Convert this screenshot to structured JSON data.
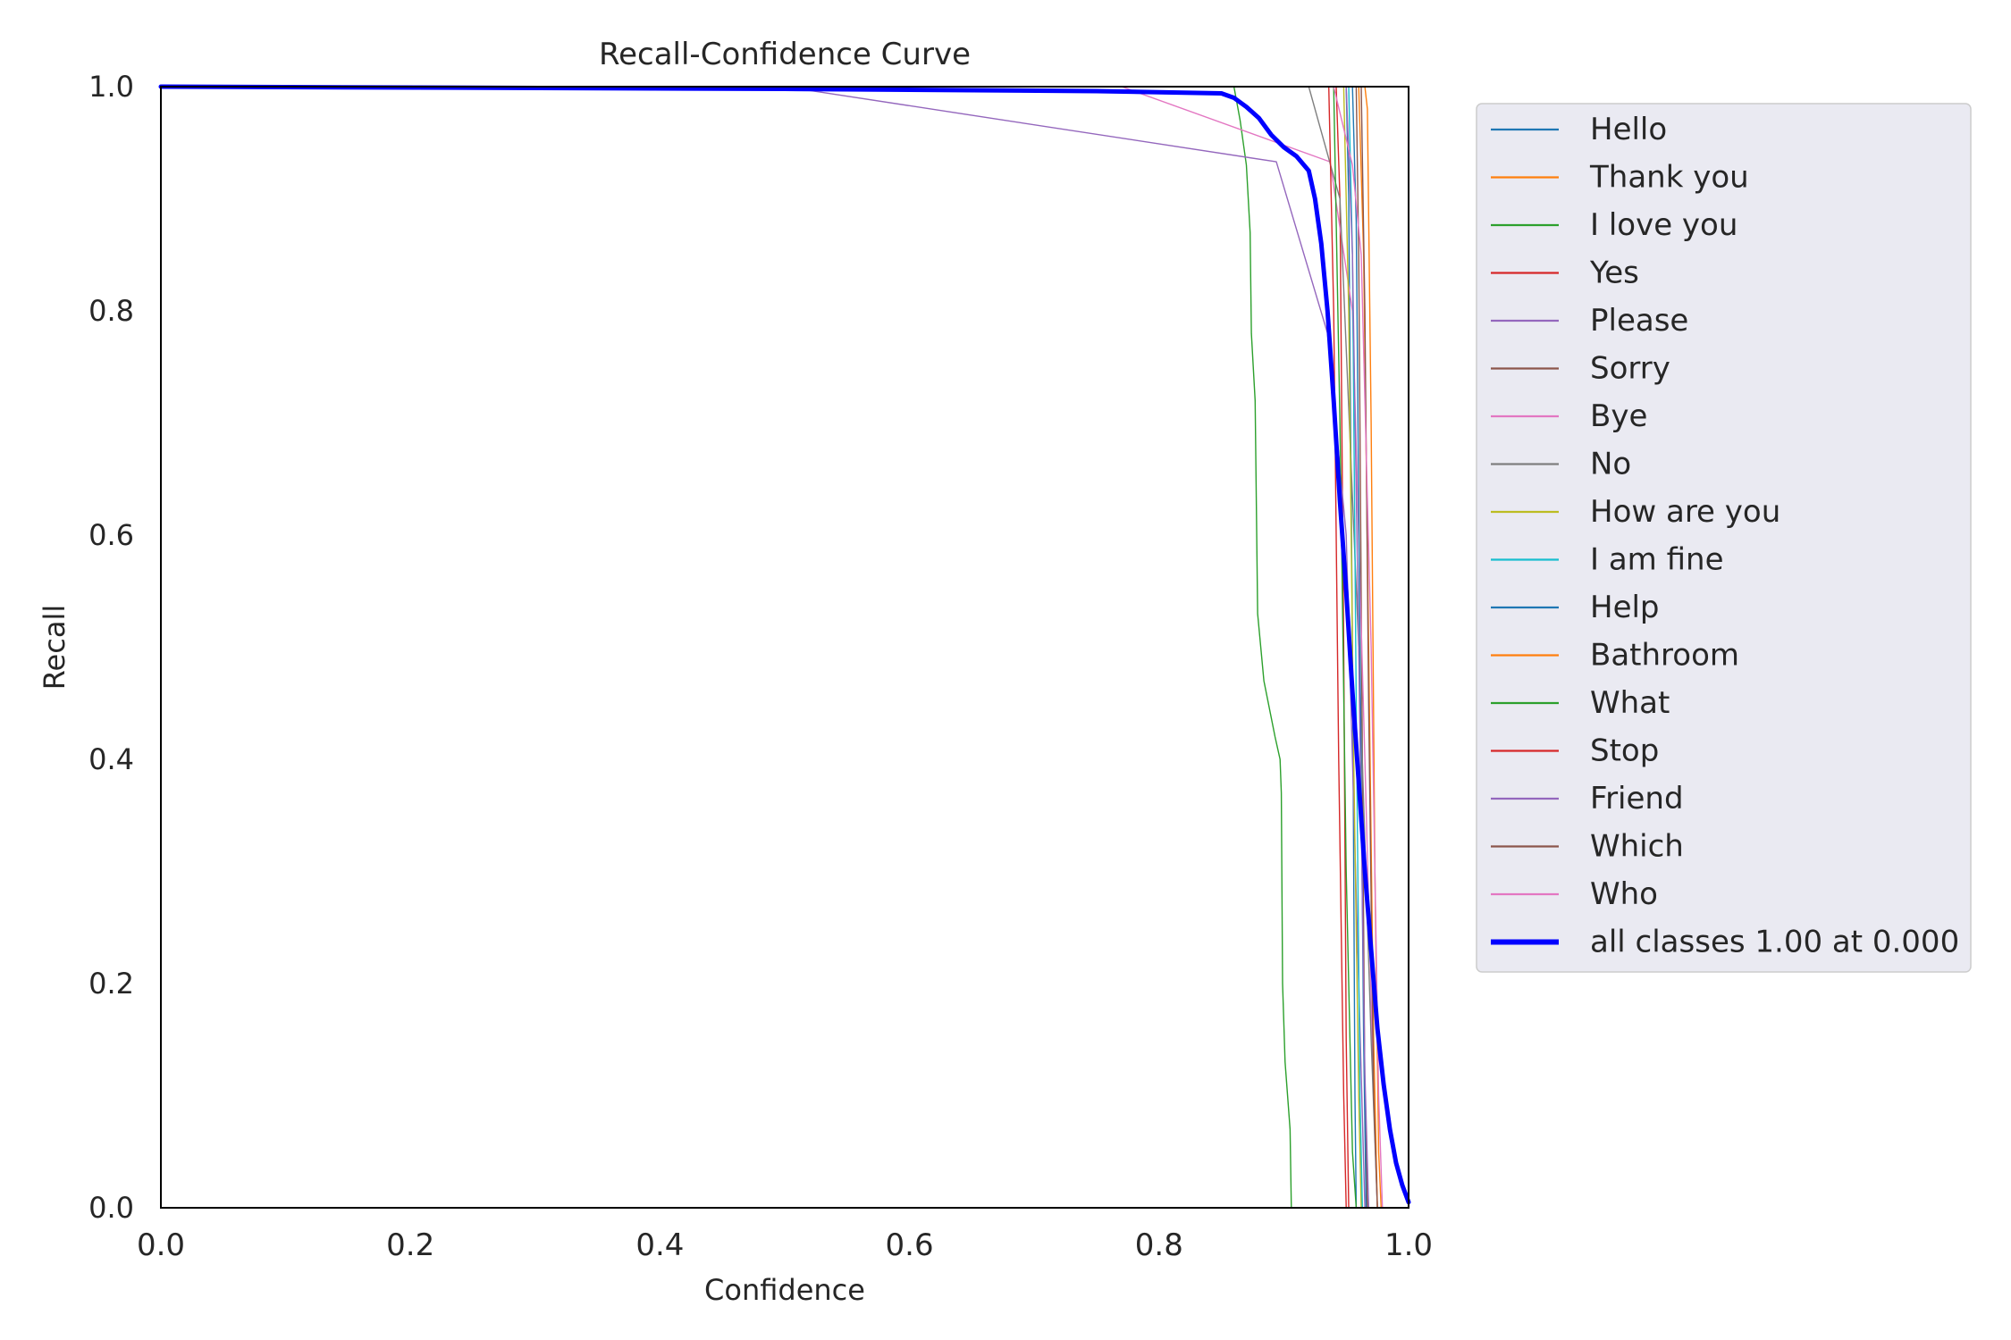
{
  "chart_data": {
    "type": "line",
    "title": "Recall-Confidence Curve",
    "xlabel": "Confidence",
    "ylabel": "Recall",
    "xlim": [
      0,
      1
    ],
    "ylim": [
      0,
      1
    ],
    "x_ticks": [
      "0.0",
      "0.2",
      "0.4",
      "0.6",
      "0.8",
      "1.0"
    ],
    "y_ticks": [
      "0.0",
      "0.2",
      "0.4",
      "0.6",
      "0.8",
      "1.0"
    ],
    "grid": false,
    "legend_position": "outside-right",
    "series": [
      {
        "name": "Hello",
        "color": "#1f77b4",
        "width": 1.4,
        "points": [
          [
            0,
            1
          ],
          [
            0.95,
            1
          ],
          [
            0.952,
            0.9
          ],
          [
            0.955,
            0.5
          ],
          [
            0.957,
            0.1
          ],
          [
            0.958,
            0
          ]
        ]
      },
      {
        "name": "Thank you",
        "color": "#ff7f0e",
        "width": 1.4,
        "points": [
          [
            0,
            1
          ],
          [
            0.965,
            1
          ],
          [
            0.967,
            0.98
          ],
          [
            0.97,
            0.7
          ],
          [
            0.973,
            0.3
          ],
          [
            0.976,
            0.05
          ],
          [
            0.978,
            0
          ]
        ]
      },
      {
        "name": "I love you",
        "color": "#2ca02c",
        "width": 1.4,
        "points": [
          [
            0,
            1
          ],
          [
            0.86,
            1
          ],
          [
            0.865,
            0.97
          ],
          [
            0.87,
            0.93
          ],
          [
            0.873,
            0.87
          ],
          [
            0.874,
            0.78
          ],
          [
            0.877,
            0.72
          ],
          [
            0.879,
            0.53
          ],
          [
            0.884,
            0.47
          ],
          [
            0.893,
            0.42
          ],
          [
            0.897,
            0.4
          ],
          [
            0.898,
            0.37
          ],
          [
            0.899,
            0.2
          ],
          [
            0.901,
            0.13
          ],
          [
            0.905,
            0.07
          ],
          [
            0.906,
            0
          ],
          [
            0.95,
            0
          ]
        ]
      },
      {
        "name": "Yes",
        "color": "#d62728",
        "width": 1.4,
        "points": [
          [
            0,
            1
          ],
          [
            0.942,
            1
          ],
          [
            0.945,
            0.9
          ],
          [
            0.948,
            0.5
          ],
          [
            0.95,
            0.15
          ],
          [
            0.952,
            0
          ]
        ]
      },
      {
        "name": "Please",
        "color": "#9467bd",
        "width": 1.4,
        "points": [
          [
            0,
            1
          ],
          [
            0.5,
            1
          ],
          [
            0.894,
            0.933
          ],
          [
            0.935,
            0.78
          ],
          [
            0.95,
            0.6
          ],
          [
            0.96,
            0.2
          ],
          [
            0.965,
            0
          ]
        ]
      },
      {
        "name": "Sorry",
        "color": "#8c564b",
        "width": 1.4,
        "points": [
          [
            0,
            1
          ],
          [
            0.958,
            1
          ],
          [
            0.96,
            0.85
          ],
          [
            0.963,
            0.4
          ],
          [
            0.965,
            0.1
          ],
          [
            0.967,
            0
          ]
        ]
      },
      {
        "name": "Bye",
        "color": "#e377c2",
        "width": 1.4,
        "points": [
          [
            0,
            1
          ],
          [
            0.77,
            1
          ],
          [
            0.937,
            0.933
          ],
          [
            0.955,
            0.8
          ],
          [
            0.965,
            0.4
          ],
          [
            0.972,
            0.1
          ],
          [
            0.975,
            0
          ]
        ]
      },
      {
        "name": "No",
        "color": "#7f7f7f",
        "width": 1.4,
        "points": [
          [
            0,
            1
          ],
          [
            0.92,
            1
          ],
          [
            0.945,
            0.9
          ],
          [
            0.96,
            0.5
          ],
          [
            0.97,
            0.15
          ],
          [
            0.975,
            0
          ]
        ]
      },
      {
        "name": "How are you",
        "color": "#bcbd22",
        "width": 1.4,
        "points": [
          [
            0,
            1
          ],
          [
            0.948,
            1
          ],
          [
            0.952,
            0.8
          ],
          [
            0.956,
            0.4
          ],
          [
            0.96,
            0.1
          ],
          [
            0.962,
            0
          ]
        ]
      },
      {
        "name": "I am fine",
        "color": "#17becf",
        "width": 1.4,
        "points": [
          [
            0,
            1
          ],
          [
            0.952,
            1
          ],
          [
            0.955,
            0.85
          ],
          [
            0.958,
            0.45
          ],
          [
            0.961,
            0.1
          ],
          [
            0.963,
            0
          ]
        ]
      },
      {
        "name": "Help",
        "color": "#1f77b4",
        "width": 1.4,
        "points": [
          [
            0,
            1
          ],
          [
            0.955,
            1
          ],
          [
            0.958,
            0.88
          ],
          [
            0.961,
            0.5
          ],
          [
            0.964,
            0.15
          ],
          [
            0.966,
            0
          ]
        ]
      },
      {
        "name": "Bathroom",
        "color": "#ff7f0e",
        "width": 1.4,
        "points": [
          [
            0,
            1
          ],
          [
            0.96,
            1
          ],
          [
            0.964,
            0.85
          ],
          [
            0.968,
            0.5
          ],
          [
            0.972,
            0.15
          ],
          [
            0.975,
            0
          ]
        ]
      },
      {
        "name": "What",
        "color": "#2ca02c",
        "width": 1.4,
        "points": [
          [
            0,
            1
          ],
          [
            0.94,
            1
          ],
          [
            0.945,
            0.7
          ],
          [
            0.95,
            0.3
          ],
          [
            0.955,
            0.05
          ],
          [
            0.958,
            0
          ]
        ]
      },
      {
        "name": "Stop",
        "color": "#d62728",
        "width": 1.4,
        "points": [
          [
            0,
            1
          ],
          [
            0.936,
            1
          ],
          [
            0.94,
            0.8
          ],
          [
            0.944,
            0.4
          ],
          [
            0.948,
            0.1
          ],
          [
            0.95,
            0
          ]
        ]
      },
      {
        "name": "Friend",
        "color": "#9467bd",
        "width": 1.4,
        "points": [
          [
            0,
            1
          ],
          [
            0.95,
            1
          ],
          [
            0.955,
            0.85
          ],
          [
            0.96,
            0.5
          ],
          [
            0.965,
            0.12
          ],
          [
            0.968,
            0
          ]
        ]
      },
      {
        "name": "Which",
        "color": "#8c564b",
        "width": 1.4,
        "points": [
          [
            0,
            1
          ],
          [
            0.962,
            1
          ],
          [
            0.965,
            0.8
          ],
          [
            0.968,
            0.45
          ],
          [
            0.972,
            0.1
          ],
          [
            0.975,
            0
          ]
        ]
      },
      {
        "name": "Who",
        "color": "#e377c2",
        "width": 1.4,
        "points": [
          [
            0,
            1
          ],
          [
            0.94,
            1
          ],
          [
            0.955,
            0.93
          ],
          [
            0.962,
            0.85
          ],
          [
            0.97,
            0.5
          ],
          [
            0.976,
            0.1
          ],
          [
            0.979,
            0
          ]
        ]
      },
      {
        "name": "all classes 1.00 at 0.000",
        "color": "#0000ff",
        "width": 5,
        "points": [
          [
            0,
            1
          ],
          [
            0.5,
            0.998
          ],
          [
            0.75,
            0.996
          ],
          [
            0.85,
            0.994
          ],
          [
            0.86,
            0.99
          ],
          [
            0.87,
            0.982
          ],
          [
            0.88,
            0.972
          ],
          [
            0.89,
            0.957
          ],
          [
            0.9,
            0.946
          ],
          [
            0.91,
            0.938
          ],
          [
            0.92,
            0.925
          ],
          [
            0.925,
            0.9
          ],
          [
            0.93,
            0.86
          ],
          [
            0.935,
            0.8
          ],
          [
            0.94,
            0.72
          ],
          [
            0.945,
            0.63
          ],
          [
            0.95,
            0.55
          ],
          [
            0.955,
            0.46
          ],
          [
            0.96,
            0.38
          ],
          [
            0.965,
            0.3
          ],
          [
            0.97,
            0.23
          ],
          [
            0.975,
            0.16
          ],
          [
            0.98,
            0.11
          ],
          [
            0.985,
            0.07
          ],
          [
            0.99,
            0.04
          ],
          [
            0.995,
            0.02
          ],
          [
            1,
            0.005
          ]
        ]
      }
    ]
  }
}
